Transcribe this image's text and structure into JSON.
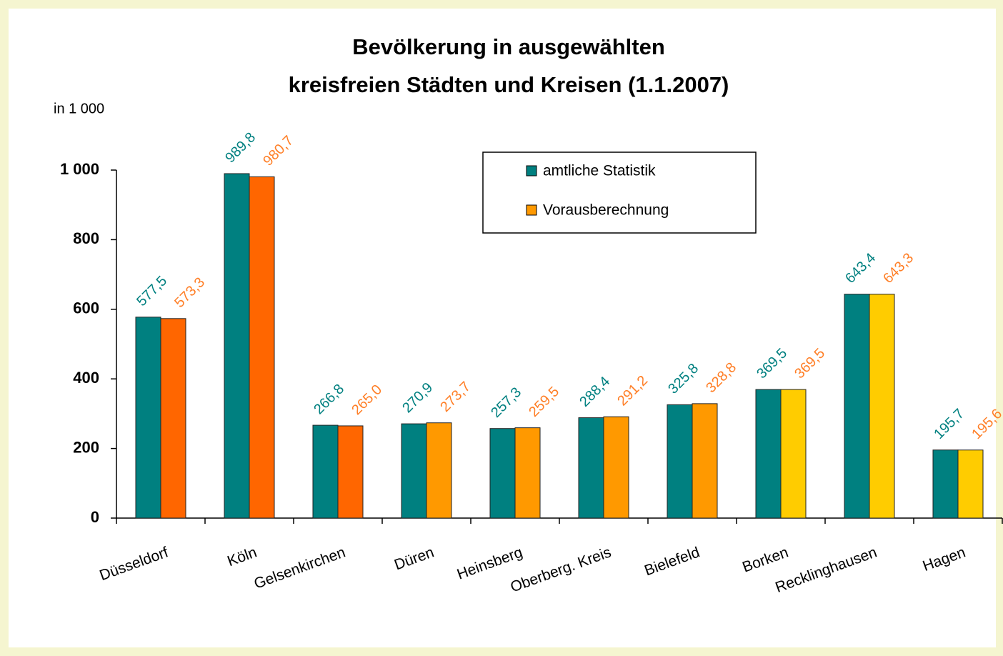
{
  "chart_data": {
    "type": "bar",
    "title": [
      "Bevölkerung in ausgewählten",
      "kreisfreien Städten und Kreisen (1.1.2007)"
    ],
    "y_unit": "in 1 000",
    "categories": [
      "Düsseldorf",
      "Köln",
      "Gelsenkirchen",
      "Düren",
      "Heinsberg",
      "Oberberg. Kreis",
      "Bielefeld",
      "Borken",
      "Recklinghausen",
      "Hagen"
    ],
    "series": [
      {
        "name": "amtliche Statistik",
        "color": "#008080",
        "values": [
          577.5,
          989.8,
          266.8,
          270.9,
          257.3,
          288.4,
          325.8,
          369.5,
          643.4,
          195.7
        ],
        "value_labels": [
          "577,5",
          "989,8",
          "266,8",
          "270,9",
          "257,3",
          "288,4",
          "325,8",
          "369,5",
          "643,4",
          "195,7"
        ]
      },
      {
        "name": "Vorausberechnung",
        "color": "#FF9900",
        "colors": [
          "#FF6600",
          "#FF6600",
          "#FF6600",
          "#FF9900",
          "#FF9900",
          "#FF9900",
          "#FF9900",
          "#FFCC00",
          "#FFCC00",
          "#FFCC00"
        ],
        "values": [
          573.3,
          980.7,
          265.0,
          273.7,
          259.5,
          291.2,
          328.8,
          369.5,
          643.3,
          195.6
        ],
        "value_labels": [
          "573,3",
          "980,7",
          "265,0",
          "273,7",
          "259,5",
          "291,2",
          "328,8",
          "369,5",
          "643,3",
          "195,6"
        ]
      }
    ],
    "ylim": [
      0,
      1000
    ],
    "yticks": [
      0,
      200,
      400,
      600,
      800,
      {
        "value": 1000,
        "label": "1 000"
      }
    ],
    "legend": "top-right"
  }
}
